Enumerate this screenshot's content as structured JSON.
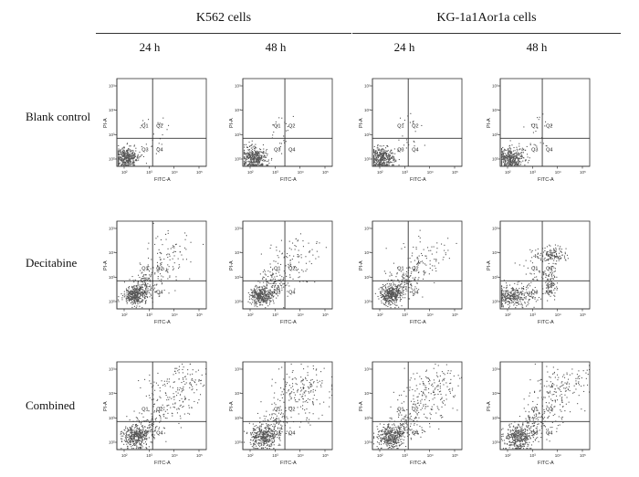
{
  "figure": {
    "groups": [
      {
        "label": "K562  cells",
        "timepoints": [
          "24 h",
          "48 h"
        ]
      },
      {
        "label": "KG-1a1Aor1a  cells",
        "timepoints": [
          "24 h",
          "48 h"
        ]
      }
    ],
    "rows": [
      {
        "label": "Blank  control"
      },
      {
        "label": "Decitabine"
      },
      {
        "label": "Combined"
      }
    ],
    "axis_labels": {
      "x": "FITC-A",
      "y": "PI-A"
    },
    "quadrant_labels": [
      "Q1",
      "Q2",
      "Q3",
      "Q4"
    ],
    "tick_labels": [
      "10²",
      "10³",
      "10⁴",
      "10⁵"
    ],
    "colors": {
      "dots": "#555555",
      "axes": "#222222",
      "gate": "#333333"
    }
  },
  "panels": [
    {
      "row": 0,
      "col": 0,
      "condition": "Blank control",
      "cell_line": "K562",
      "time": "24 h",
      "gate_x": 0.4,
      "gate_y": 0.32
    },
    {
      "row": 0,
      "col": 1,
      "condition": "Blank control",
      "cell_line": "K562",
      "time": "48 h",
      "gate_x": 0.47,
      "gate_y": 0.32
    },
    {
      "row": 0,
      "col": 2,
      "condition": "Blank control",
      "cell_line": "KG-1a",
      "time": "24 h",
      "gate_x": 0.4,
      "gate_y": 0.32
    },
    {
      "row": 0,
      "col": 3,
      "condition": "Blank control",
      "cell_line": "KG-1a",
      "time": "48 h",
      "gate_x": 0.47,
      "gate_y": 0.32
    },
    {
      "row": 1,
      "col": 0,
      "condition": "Decitabine",
      "cell_line": "K562",
      "time": "24 h",
      "gate_x": 0.4,
      "gate_y": 0.32
    },
    {
      "row": 1,
      "col": 1,
      "condition": "Decitabine",
      "cell_line": "K562",
      "time": "48 h",
      "gate_x": 0.47,
      "gate_y": 0.32
    },
    {
      "row": 1,
      "col": 2,
      "condition": "Decitabine",
      "cell_line": "KG-1a",
      "time": "24 h",
      "gate_x": 0.4,
      "gate_y": 0.32
    },
    {
      "row": 1,
      "col": 3,
      "condition": "Decitabine",
      "cell_line": "KG-1a",
      "time": "48 h",
      "gate_x": 0.47,
      "gate_y": 0.32
    },
    {
      "row": 2,
      "col": 0,
      "condition": "Combined",
      "cell_line": "K562",
      "time": "24 h",
      "gate_x": 0.4,
      "gate_y": 0.32
    },
    {
      "row": 2,
      "col": 1,
      "condition": "Combined",
      "cell_line": "K562",
      "time": "48 h",
      "gate_x": 0.47,
      "gate_y": 0.32
    },
    {
      "row": 2,
      "col": 2,
      "condition": "Combined",
      "cell_line": "KG-1a",
      "time": "24 h",
      "gate_x": 0.4,
      "gate_y": 0.32
    },
    {
      "row": 2,
      "col": 3,
      "condition": "Combined",
      "cell_line": "KG-1a",
      "time": "48 h",
      "gate_x": 0.47,
      "gate_y": 0.32
    }
  ]
}
